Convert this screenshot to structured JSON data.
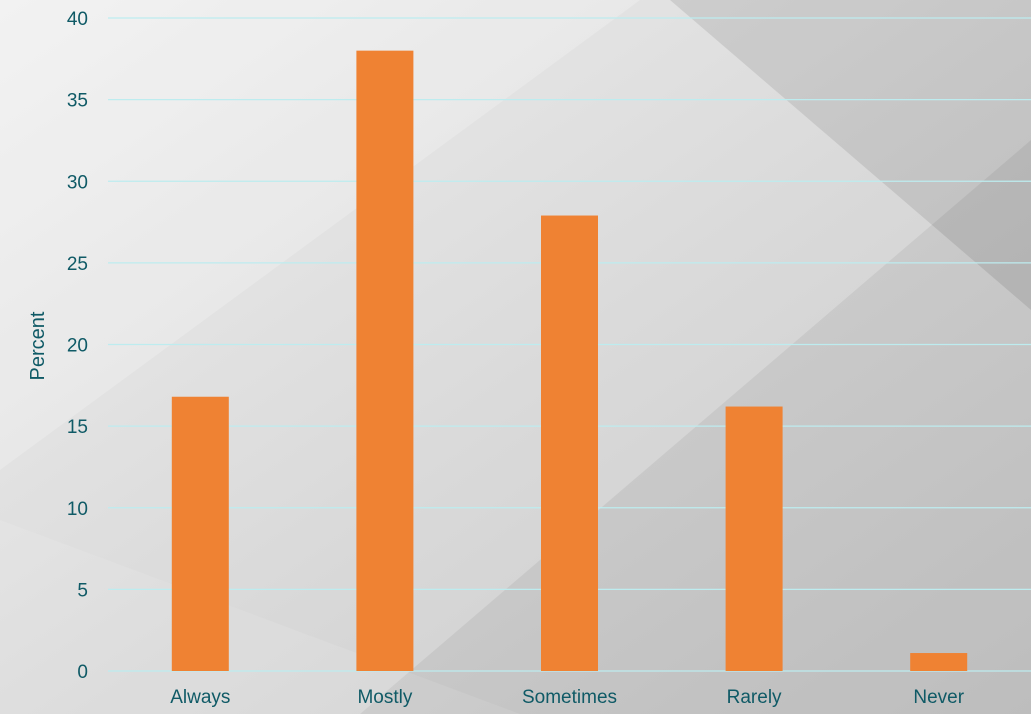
{
  "chart_data": {
    "type": "bar",
    "categories": [
      "Always",
      "Mostly",
      "Sometimes",
      "Rarely",
      "Never"
    ],
    "values": [
      16.8,
      38.0,
      27.9,
      16.2,
      1.1
    ],
    "title": "",
    "xlabel": "",
    "ylabel": "Percent",
    "ylim": [
      0,
      40
    ],
    "yticks": [
      0,
      5,
      10,
      15,
      20,
      25,
      30,
      35,
      40
    ],
    "grid": true,
    "legend": "none"
  },
  "colors": {
    "bar": "#ef8233",
    "grid": "#bdecef",
    "text": "#0f5a66",
    "background_light": "#e9e9e9",
    "background_mid": "#d4d4d4",
    "background_dark": "#c2c2c2"
  }
}
